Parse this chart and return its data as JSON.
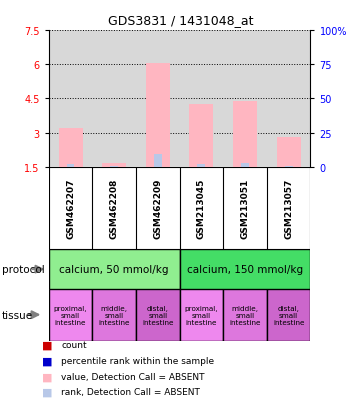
{
  "title": "GDS3831 / 1431048_at",
  "samples": [
    "GSM462207",
    "GSM462208",
    "GSM462209",
    "GSM213045",
    "GSM213051",
    "GSM213057"
  ],
  "value_absent": [
    3.2,
    1.65,
    6.05,
    4.25,
    4.4,
    2.8
  ],
  "rank_absent": [
    1.6,
    1.55,
    2.05,
    1.62,
    1.65,
    1.55
  ],
  "ylim_left": [
    1.5,
    7.5
  ],
  "ylim_right": [
    0,
    100
  ],
  "yticks_left": [
    1.5,
    3.0,
    4.5,
    6.0,
    7.5
  ],
  "ytick_labels_left": [
    "1.5",
    "3",
    "4.5",
    "6",
    "7.5"
  ],
  "yticks_right": [
    0,
    25,
    50,
    75,
    100
  ],
  "ytick_labels_right": [
    "0",
    "25",
    "50",
    "75",
    "100%"
  ],
  "color_value_absent": "#FFB6C1",
  "color_rank_absent": "#B8C8E8",
  "protocol_labels": [
    "calcium, 50 mmol/kg",
    "calcium, 150 mmol/kg"
  ],
  "protocol_colors": [
    "#90EE90",
    "#44DD66"
  ],
  "tissue_labels": [
    "proximal,\nsmall\nintestine",
    "middle,\nsmall\nintestine",
    "distal,\nsmall\nintestine",
    "proximal,\nsmall\nintestine",
    "middle,\nsmall\nintestine",
    "distal,\nsmall\nintestine"
  ],
  "tissue_colors": [
    "#EE88EE",
    "#DD77DD",
    "#CC66CC",
    "#EE88EE",
    "#DD77DD",
    "#CC66CC"
  ],
  "legend_items": [
    {
      "color": "#CC0000",
      "marker": "s",
      "label": "count"
    },
    {
      "color": "#0000CC",
      "marker": "s",
      "label": "percentile rank within the sample"
    },
    {
      "color": "#FFB6C1",
      "marker": "s",
      "label": "value, Detection Call = ABSENT"
    },
    {
      "color": "#B8C8E8",
      "marker": "s",
      "label": "rank, Detection Call = ABSENT"
    }
  ],
  "bg_color_chart": "#D8D8D8",
  "bar_width": 0.55,
  "rank_bar_width": 0.18,
  "grid_color": "#000000",
  "base_value": 1.5
}
